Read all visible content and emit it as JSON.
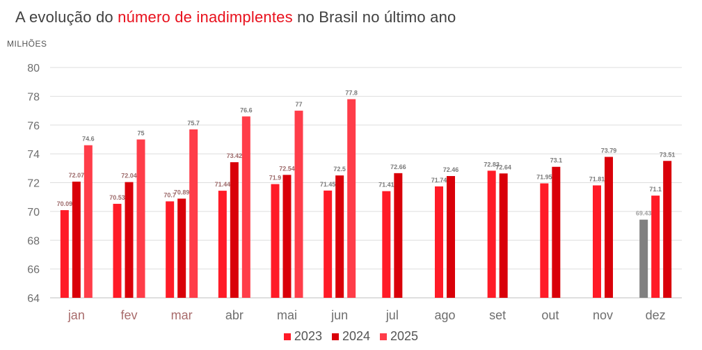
{
  "title": {
    "prefix": "A evolução do ",
    "highlight": "número de inadimplentes",
    "suffix": " no Brasil no último ano"
  },
  "colors": {
    "series_2023": "#ff1b27",
    "series_2024": "#d90009",
    "series_2025": "#ff3d49",
    "highlight_bar": "#808080",
    "title_highlight": "#e8101c"
  },
  "chart_data": {
    "type": "bar",
    "ylabel": "MILHÕES",
    "xlabel": "",
    "ylim": [
      64,
      80
    ],
    "yticks": [
      64,
      66,
      68,
      70,
      72,
      74,
      76,
      78,
      80
    ],
    "grid": true,
    "legend_position": "bottom",
    "categories": [
      "jan",
      "fev",
      "mar",
      "abr",
      "mai",
      "jun",
      "jul",
      "ago",
      "set",
      "out",
      "nov",
      "dez"
    ],
    "series": [
      {
        "name": "2023",
        "values": [
          70.09,
          70.53,
          70.7,
          71.44,
          71.9,
          71.45,
          71.41,
          71.74,
          72.83,
          71.95,
          71.81,
          71.1
        ],
        "labels": [
          "70.09",
          "70.53",
          "70.7",
          "71.44",
          "71.9",
          "71.45",
          "71.41",
          "71.74",
          "72.83",
          "71.95",
          "71.81",
          "71.1"
        ]
      },
      {
        "name": "2024",
        "values": [
          72.07,
          72.04,
          70.89,
          73.42,
          72.54,
          72.5,
          72.66,
          72.46,
          72.64,
          73.1,
          73.79,
          73.51
        ],
        "labels": [
          "72.07",
          "72.04",
          "70.89",
          "73.42",
          "72.54",
          "72.5",
          "72.66",
          "72.46",
          "72.64",
          "73.1",
          "73.79",
          "73.51"
        ]
      },
      {
        "name": "2025",
        "values": [
          74.6,
          75,
          75.7,
          76.6,
          77,
          77.8,
          null,
          null,
          null,
          null,
          null,
          null
        ],
        "labels": [
          "74.6",
          "75",
          "75.7",
          "76.6",
          "77",
          "77.8",
          null,
          null,
          null,
          null,
          null,
          null
        ]
      }
    ],
    "extra_bars": [
      {
        "category": "dez",
        "value": 69.43,
        "label": "69.43",
        "color": "gray"
      }
    ]
  }
}
